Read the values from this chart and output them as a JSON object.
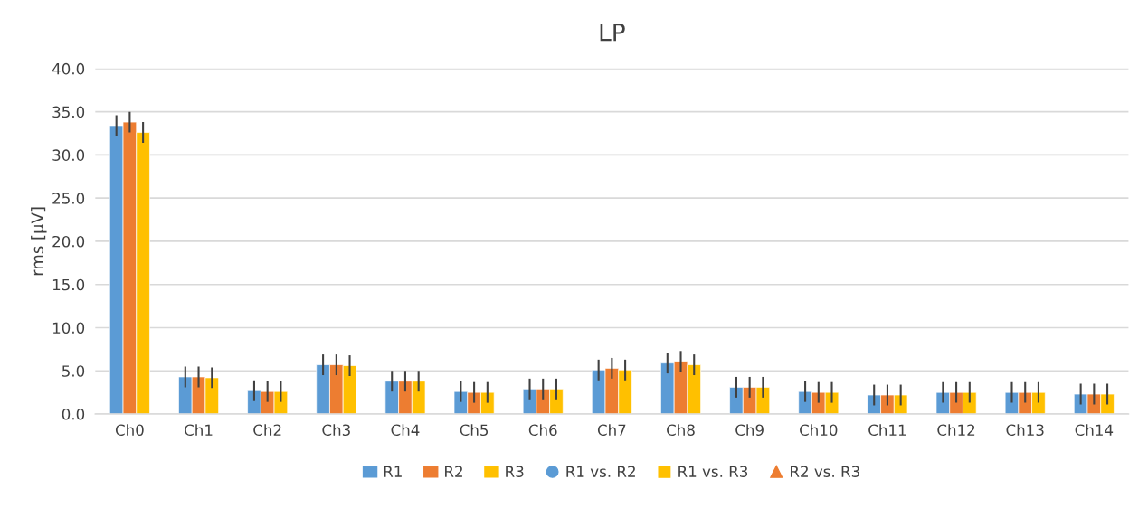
{
  "chart_data": {
    "type": "bar",
    "title": "LP",
    "ylabel": "rms [µV]",
    "categories": [
      "Ch0",
      "Ch1",
      "Ch2",
      "Ch3",
      "Ch4",
      "Ch5",
      "Ch6",
      "Ch7",
      "Ch8",
      "Ch9",
      "Ch10",
      "Ch11",
      "Ch12",
      "Ch13",
      "Ch14"
    ],
    "series": [
      {
        "name": "R1",
        "color": "#5b9bd5",
        "values": [
          33.4,
          4.3,
          2.7,
          5.7,
          3.8,
          2.6,
          2.9,
          5.1,
          5.9,
          3.1,
          2.6,
          2.2,
          2.5,
          2.5,
          2.3
        ],
        "errors": [
          1.2,
          1.2,
          1.2,
          1.2,
          1.2,
          1.2,
          1.2,
          1.2,
          1.2,
          1.2,
          1.2,
          1.2,
          1.2,
          1.2,
          1.2
        ]
      },
      {
        "name": "R2",
        "color": "#ed7d31",
        "values": [
          33.8,
          4.3,
          2.6,
          5.7,
          3.8,
          2.5,
          2.9,
          5.3,
          6.1,
          3.1,
          2.5,
          2.2,
          2.5,
          2.5,
          2.3
        ],
        "errors": [
          1.2,
          1.2,
          1.2,
          1.2,
          1.2,
          1.2,
          1.2,
          1.2,
          1.2,
          1.2,
          1.2,
          1.2,
          1.2,
          1.2,
          1.2
        ]
      },
      {
        "name": "R3",
        "color": "#ffc000",
        "values": [
          32.6,
          4.2,
          2.6,
          5.6,
          3.8,
          2.5,
          2.9,
          5.1,
          5.7,
          3.1,
          2.5,
          2.2,
          2.5,
          2.5,
          2.3
        ],
        "errors": [
          1.2,
          1.2,
          1.2,
          1.2,
          1.2,
          1.2,
          1.2,
          1.2,
          1.2,
          1.2,
          1.2,
          1.2,
          1.2,
          1.2,
          1.2
        ]
      },
      {
        "name": "R1 vs. R2",
        "type": "scatter",
        "marker": "circle",
        "color": "#5b9bd5",
        "values": [
          null,
          null,
          null,
          null,
          null,
          null,
          null,
          null,
          null,
          null,
          null,
          null,
          null,
          null,
          null
        ]
      },
      {
        "name": "R1 vs. R3",
        "type": "scatter",
        "marker": "square",
        "color": "#ffc000",
        "values": [
          null,
          null,
          null,
          null,
          null,
          null,
          null,
          null,
          null,
          null,
          null,
          null,
          null,
          null,
          null
        ]
      },
      {
        "name": "R2 vs. R3",
        "type": "scatter",
        "marker": "triangle",
        "color": "#ed7d31",
        "values": [
          null,
          null,
          null,
          null,
          null,
          null,
          null,
          null,
          null,
          null,
          null,
          null,
          null,
          null,
          null
        ]
      }
    ],
    "ylim": [
      0,
      40
    ],
    "yticks": [
      {
        "value": 0,
        "label": "0.0"
      },
      {
        "value": 5,
        "label": "5.0"
      },
      {
        "value": 10,
        "label": "10.0"
      },
      {
        "value": 15,
        "label": "15.0"
      },
      {
        "value": 20,
        "label": "20.0"
      },
      {
        "value": 25,
        "label": "25.0"
      },
      {
        "value": 30,
        "label": "30.0"
      },
      {
        "value": 35,
        "label": "35.0"
      },
      {
        "value": 40,
        "label": "40.0"
      }
    ],
    "grid": "y",
    "legend": "bottom"
  }
}
